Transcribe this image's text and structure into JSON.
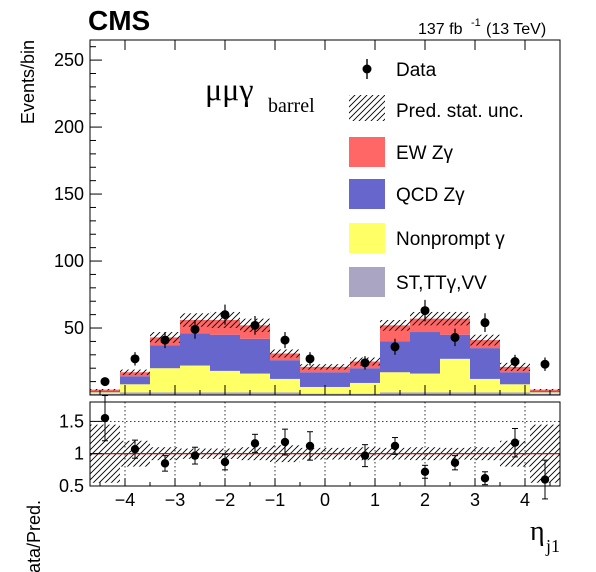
{
  "header": {
    "experiment": "CMS",
    "lumi_value": "137 fb",
    "lumi_exp": "-1",
    "lumi_energy": "(13 TeV)"
  },
  "channel": {
    "main": "μμγ",
    "sub": "barrel"
  },
  "axes": {
    "ylabel_top": "Events/bin",
    "ylabel_ratio": "Data/Pred.",
    "xtitle_main": "η",
    "xtitle_sub": "j1"
  },
  "colors": {
    "ew": "#ff6666",
    "qcd": "#6666cc",
    "nonprompt": "#ffff66",
    "other": "#aaa5c3",
    "unity_line": "#cc0000"
  },
  "chart_data": [
    {
      "type": "bar",
      "stacked": true,
      "title": "",
      "xlabel": "η_j1",
      "ylabel": "Events/bin",
      "xlim": [
        -4.7,
        4.7
      ],
      "ylim": [
        0,
        265
      ],
      "y_ticks": [
        "50",
        "100",
        "150",
        "200",
        "250"
      ],
      "x_ticks": [
        "−4",
        "−3",
        "−2",
        "−1",
        "0",
        "1",
        "2",
        "3",
        "4"
      ],
      "bin_edges": [
        -4.7,
        -4.1,
        -3.5,
        -2.9,
        -2.3,
        -1.7,
        -1.1,
        -0.5,
        0.5,
        1.1,
        1.7,
        2.3,
        2.9,
        3.5,
        4.1,
        4.7
      ],
      "legend_position": "top-right",
      "series": [
        {
          "name": "ST,TTγ,VV",
          "color": "#aaa5c3",
          "values": [
            1,
            2,
            2,
            2,
            2,
            2,
            2,
            1,
            1,
            2,
            2,
            2,
            2,
            2,
            1
          ]
        },
        {
          "name": "Nonprompt γ",
          "color": "#ffff66",
          "values": [
            1,
            6,
            18,
            20,
            16,
            14,
            10,
            5,
            8,
            15,
            14,
            25,
            10,
            6,
            1
          ]
        },
        {
          "name": "QCD Zγ",
          "color": "#6666cc",
          "values": [
            1,
            6,
            17,
            24,
            27,
            26,
            14,
            11,
            11,
            23,
            31,
            18,
            23,
            9,
            1
          ]
        },
        {
          "name": "EW Zγ",
          "color": "#ff6666",
          "values": [
            1,
            3,
            6,
            10,
            11,
            10,
            5,
            4,
            5,
            12,
            10,
            12,
            6,
            4,
            1
          ]
        }
      ],
      "stat_unc": [
        0.5,
        2,
        4,
        5,
        6,
        5,
        3,
        2,
        3,
        4,
        5,
        5,
        4,
        3,
        0.5
      ],
      "data_label": "Data",
      "unc_label": "Pred. stat. unc.",
      "data": {
        "x": [
          -4.4,
          -3.8,
          -3.2,
          -2.6,
          -2.0,
          -1.4,
          -0.8,
          -0.3,
          0.8,
          1.4,
          2.0,
          2.6,
          3.2,
          3.8,
          4.4
        ],
        "y": [
          10,
          27,
          41,
          49,
          60,
          52,
          41,
          27,
          24,
          36,
          63,
          43,
          54,
          25,
          23
        ],
        "err": [
          3,
          5,
          6,
          7,
          7.5,
          7,
          6,
          5,
          5,
          6,
          8,
          6.5,
          7,
          5,
          5
        ]
      }
    },
    {
      "type": "scatter",
      "title": "",
      "xlabel": "η_j1",
      "ylabel": "Data/Pred.",
      "xlim": [
        -4.7,
        4.7
      ],
      "ylim": [
        0.5,
        1.8
      ],
      "y_ticks": [
        "0.5",
        "1",
        "1.5"
      ],
      "x": [
        -4.4,
        -3.8,
        -3.2,
        -2.6,
        -2.0,
        -1.4,
        -0.8,
        -0.3,
        0.8,
        1.4,
        2.0,
        2.6,
        3.2,
        3.8,
        4.4
      ],
      "y": [
        1.55,
        1.07,
        0.85,
        0.97,
        0.87,
        1.16,
        1.18,
        1.12,
        0.97,
        1.12,
        0.72,
        0.86,
        0.62,
        1.17,
        0.6
      ],
      "err": [
        0.35,
        0.14,
        0.12,
        0.13,
        0.12,
        0.14,
        0.2,
        0.22,
        0.17,
        0.13,
        0.1,
        0.11,
        0.1,
        0.22,
        0.3
      ],
      "unc_band": [
        0.45,
        0.2,
        0.1,
        0.08,
        0.08,
        0.1,
        0.13,
        0.09,
        0.1,
        0.09,
        0.1,
        0.09,
        0.1,
        0.2,
        0.45
      ],
      "reference_line": 1.0
    }
  ]
}
